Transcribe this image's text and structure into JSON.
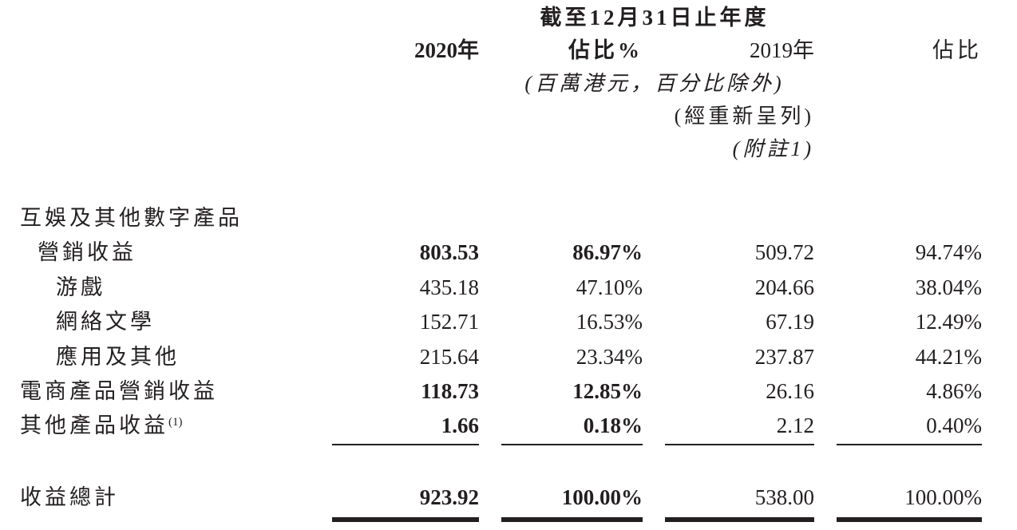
{
  "document": {
    "header": {
      "period_title": "截至12月31日止年度",
      "columns": {
        "y2020": "2020年",
        "share2020": "佔比%",
        "y2019": "2019年",
        "share2019": "佔比"
      },
      "unit_note": "(百萬港元，百分比除外)",
      "restated_note": "(經重新呈列)",
      "note_ref": "(附註1)"
    },
    "rows": [
      {
        "label": "互娛及其他數字產品",
        "sup": "",
        "indent": 0,
        "bold": false,
        "v2020": "",
        "p2020": "",
        "v2019": "",
        "p2019": ""
      },
      {
        "label": "營銷收益",
        "sup": "",
        "indent": 1,
        "bold": true,
        "v2020": "803.53",
        "p2020": "86.97%",
        "v2019": "509.72",
        "p2019": "94.74%"
      },
      {
        "label": "游戲",
        "sup": "",
        "indent": 2,
        "bold": false,
        "v2020": "435.18",
        "p2020": "47.10%",
        "v2019": "204.66",
        "p2019": "38.04%"
      },
      {
        "label": "網絡文學",
        "sup": "",
        "indent": 2,
        "bold": false,
        "v2020": "152.71",
        "p2020": "16.53%",
        "v2019": "67.19",
        "p2019": "12.49%"
      },
      {
        "label": "應用及其他",
        "sup": "",
        "indent": 2,
        "bold": false,
        "v2020": "215.64",
        "p2020": "23.34%",
        "v2019": "237.87",
        "p2019": "44.21%"
      },
      {
        "label": "電商產品營銷收益",
        "sup": "",
        "indent": 0,
        "bold": true,
        "v2020": "118.73",
        "p2020": "12.85%",
        "v2019": "26.16",
        "p2019": "4.86%"
      },
      {
        "label": "其他產品收益",
        "sup": "(1)",
        "indent": 0,
        "bold": true,
        "v2020": "1.66",
        "p2020": "0.18%",
        "v2019": "2.12",
        "p2019": "0.40%"
      }
    ],
    "total": {
      "label": "收益總計",
      "v2020": "923.92",
      "p2020": "100.00%",
      "v2019": "538.00",
      "p2019": "100.00%"
    }
  },
  "colors": {
    "text": "#231f20",
    "background": "#ffffff"
  }
}
